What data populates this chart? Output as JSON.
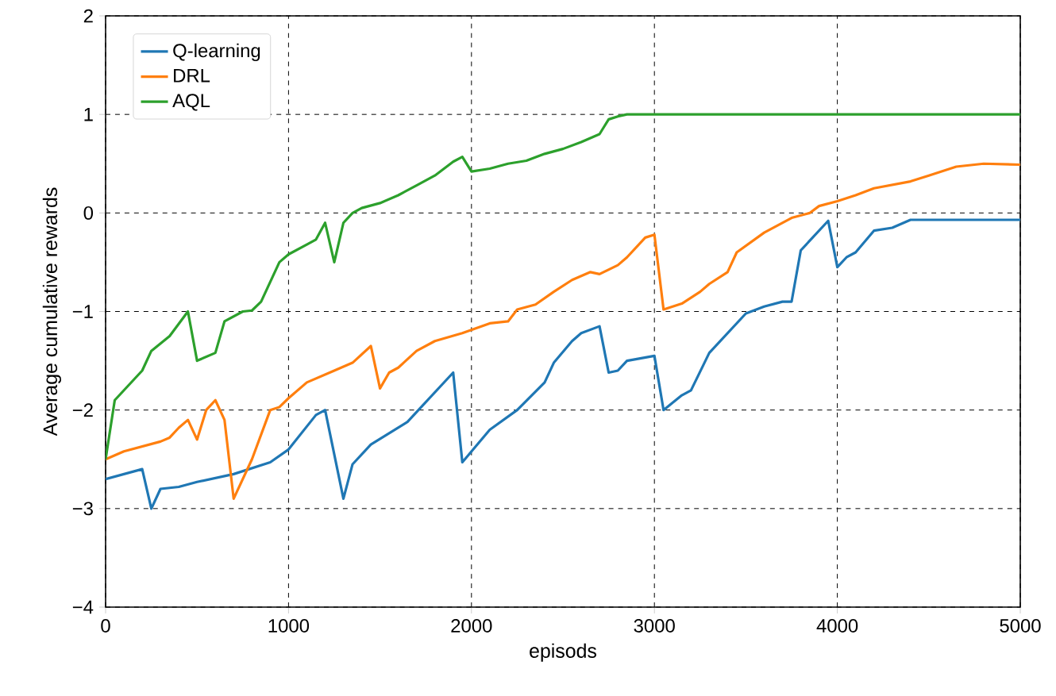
{
  "chart_data": {
    "type": "line",
    "xlabel": "episods",
    "ylabel": "Average cumulative rewards",
    "xlim": [
      0,
      5000
    ],
    "ylim": [
      -4,
      2
    ],
    "xticks": [
      0,
      1000,
      2000,
      3000,
      4000,
      5000
    ],
    "yticks": [
      {
        "value": -4,
        "label": "−4"
      },
      {
        "value": -3,
        "label": "−3"
      },
      {
        "value": -2,
        "label": "−2"
      },
      {
        "value": -1,
        "label": "−1"
      },
      0,
      1,
      2
    ],
    "grid": true,
    "legend": "top left",
    "line_style": "solid",
    "series": [
      {
        "name": "Q-learning",
        "color": "#1f77b4",
        "x": [
          0,
          200,
          250,
          300,
          400,
          500,
          700,
          900,
          1000,
          1150,
          1200,
          1300,
          1350,
          1450,
          1650,
          1900,
          1950,
          2100,
          2250,
          2400,
          2450,
          2550,
          2600,
          2700,
          2750,
          2800,
          2850,
          3000,
          3050,
          3150,
          3200,
          3300,
          3500,
          3600,
          3700,
          3750,
          3800,
          3950,
          4000,
          4050,
          4100,
          4200,
          4300,
          4400,
          5000
        ],
        "values": [
          -2.7,
          -2.6,
          -3.0,
          -2.8,
          -2.78,
          -2.73,
          -2.65,
          -2.53,
          -2.4,
          -2.05,
          -2.0,
          -2.9,
          -2.55,
          -2.35,
          -2.12,
          -1.62,
          -2.53,
          -2.2,
          -2.0,
          -1.72,
          -1.52,
          -1.3,
          -1.22,
          -1.15,
          -1.62,
          -1.6,
          -1.5,
          -1.45,
          -2.0,
          -1.85,
          -1.8,
          -1.42,
          -1.02,
          -0.95,
          -0.9,
          -0.9,
          -0.38,
          -0.08,
          -0.55,
          -0.45,
          -0.4,
          -0.18,
          -0.15,
          -0.07,
          -0.07
        ]
      },
      {
        "name": "DRL",
        "color": "#ff7f0e",
        "x": [
          0,
          100,
          200,
          300,
          350,
          400,
          450,
          500,
          550,
          600,
          650,
          700,
          800,
          900,
          950,
          1000,
          1100,
          1250,
          1350,
          1450,
          1500,
          1550,
          1600,
          1700,
          1800,
          1950,
          2100,
          2200,
          2250,
          2350,
          2450,
          2550,
          2650,
          2700,
          2800,
          2850,
          2950,
          3000,
          3050,
          3150,
          3250,
          3300,
          3400,
          3450,
          3600,
          3750,
          3850,
          3900,
          4000,
          4100,
          4200,
          4400,
          4500,
          4650,
          4800,
          5000
        ],
        "values": [
          -2.5,
          -2.42,
          -2.37,
          -2.32,
          -2.28,
          -2.18,
          -2.1,
          -2.3,
          -2.0,
          -1.9,
          -2.1,
          -2.9,
          -2.5,
          -2.0,
          -1.97,
          -1.88,
          -1.72,
          -1.6,
          -1.52,
          -1.35,
          -1.78,
          -1.62,
          -1.57,
          -1.4,
          -1.3,
          -1.22,
          -1.12,
          -1.1,
          -0.98,
          -0.93,
          -0.8,
          -0.68,
          -0.6,
          -0.62,
          -0.53,
          -0.45,
          -0.25,
          -0.22,
          -0.98,
          -0.92,
          -0.8,
          -0.72,
          -0.6,
          -0.4,
          -0.2,
          -0.05,
          0.0,
          0.07,
          0.12,
          0.18,
          0.25,
          0.32,
          0.38,
          0.47,
          0.5,
          0.49
        ]
      },
      {
        "name": "AQL",
        "color": "#2ca02c",
        "x": [
          0,
          50,
          200,
          250,
          350,
          450,
          500,
          600,
          650,
          750,
          800,
          850,
          950,
          1000,
          1100,
          1150,
          1200,
          1250,
          1300,
          1350,
          1400,
          1500,
          1600,
          1700,
          1800,
          1900,
          1950,
          2000,
          2100,
          2200,
          2300,
          2400,
          2500,
          2600,
          2700,
          2750,
          2800,
          2850,
          5000
        ],
        "values": [
          -2.5,
          -1.9,
          -1.6,
          -1.4,
          -1.25,
          -1.0,
          -1.5,
          -1.42,
          -1.1,
          -1.0,
          -0.99,
          -0.9,
          -0.5,
          -0.42,
          -0.32,
          -0.27,
          -0.1,
          -0.5,
          -0.1,
          0.0,
          0.05,
          0.1,
          0.18,
          0.28,
          0.38,
          0.52,
          0.57,
          0.42,
          0.45,
          0.5,
          0.53,
          0.6,
          0.65,
          0.72,
          0.8,
          0.95,
          0.98,
          1.0,
          1.0
        ]
      }
    ]
  }
}
